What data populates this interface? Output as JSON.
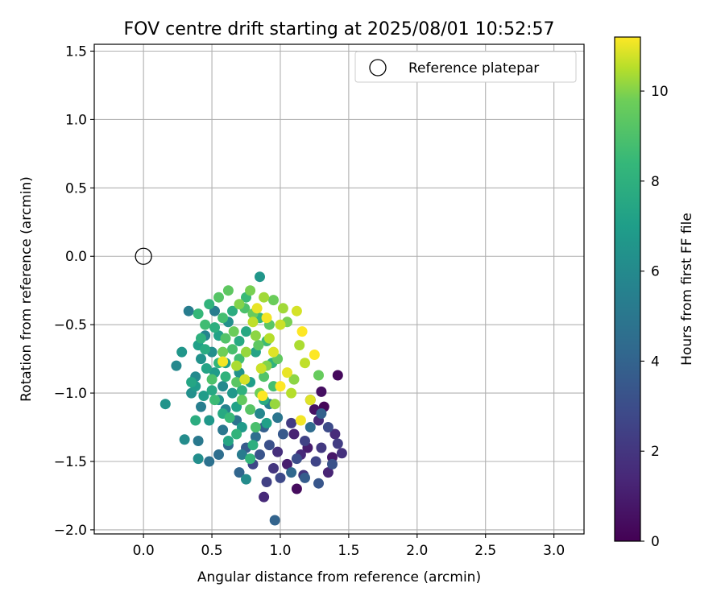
{
  "chart_data": {
    "type": "scatter",
    "title": "FOV centre drift starting at 2025/08/01 10:52:57",
    "xlabel": "Angular distance from reference (arcmin)",
    "ylabel": "Rotation from reference (arcmin)",
    "xlim": [
      -0.36,
      3.22
    ],
    "ylim": [
      -2.03,
      1.55
    ],
    "x_ticks": [
      0.0,
      0.5,
      1.0,
      1.5,
      2.0,
      2.5,
      3.0
    ],
    "x_tick_labels": [
      "0.0",
      "0.5",
      "1.0",
      "1.5",
      "2.0",
      "2.5",
      "3.0"
    ],
    "y_ticks": [
      1.5,
      1.0,
      0.5,
      0.0,
      -0.5,
      -1.0,
      -1.5,
      -2.0
    ],
    "y_tick_labels": [
      "1.5",
      "1.0",
      "0.5",
      "0.0",
      "−0.5",
      "−1.0",
      "−1.5",
      "−2.0"
    ],
    "grid": true,
    "legend": {
      "location": "top-right",
      "entries": [
        "Reference platepar"
      ]
    },
    "reference_point": {
      "x": 0.0,
      "y": 0.0,
      "label": "Reference platepar",
      "marker": "open circle"
    },
    "colorbar": {
      "label": "Hours from first FF file",
      "colormap": "viridis",
      "range": [
        0,
        11.2
      ],
      "ticks": [
        0,
        2,
        4,
        6,
        8,
        10
      ],
      "tick_labels": [
        "0",
        "2",
        "4",
        "6",
        "8",
        "10"
      ]
    },
    "series": [
      {
        "columns": [
          "x",
          "y",
          "hours"
        ],
        "points": [
          [
            1.32,
            -1.1,
            0.2
          ],
          [
            1.42,
            -0.87,
            0.3
          ],
          [
            1.12,
            -1.7,
            0.4
          ],
          [
            1.3,
            -0.99,
            0.5
          ],
          [
            1.25,
            -1.12,
            0.6
          ],
          [
            1.38,
            -1.47,
            0.8
          ],
          [
            1.2,
            -1.4,
            1.0
          ],
          [
            1.05,
            -1.52,
            1.0
          ],
          [
            1.1,
            -1.3,
            1.2
          ],
          [
            1.35,
            -1.58,
            1.3
          ],
          [
            1.28,
            -1.2,
            1.4
          ],
          [
            0.88,
            -1.76,
            1.5
          ],
          [
            1.15,
            -1.45,
            1.5
          ],
          [
            1.4,
            -1.3,
            1.6
          ],
          [
            0.98,
            -1.43,
            1.7
          ],
          [
            1.22,
            -1.05,
            1.7
          ],
          [
            1.45,
            -1.44,
            1.8
          ],
          [
            1.17,
            -1.6,
            1.9
          ],
          [
            0.95,
            -1.55,
            2.0
          ],
          [
            1.3,
            -1.4,
            2.1
          ],
          [
            1.08,
            -1.22,
            2.2
          ],
          [
            1.42,
            -1.37,
            2.3
          ],
          [
            0.9,
            -1.65,
            2.4
          ],
          [
            1.18,
            -1.35,
            2.5
          ],
          [
            1.26,
            -1.5,
            2.6
          ],
          [
            0.8,
            -1.52,
            2.7
          ],
          [
            1.0,
            -1.62,
            2.8
          ],
          [
            1.35,
            -1.25,
            2.9
          ],
          [
            1.12,
            -1.48,
            3.0
          ],
          [
            0.92,
            -1.38,
            3.1
          ],
          [
            1.38,
            -1.52,
            3.2
          ],
          [
            0.85,
            -1.45,
            3.3
          ],
          [
            1.28,
            -1.66,
            3.4
          ],
          [
            1.02,
            -1.3,
            3.5
          ],
          [
            0.75,
            -1.4,
            3.6
          ],
          [
            1.18,
            -1.62,
            3.7
          ],
          [
            0.88,
            -1.25,
            3.8
          ],
          [
            1.3,
            -1.15,
            3.9
          ],
          [
            0.96,
            -1.93,
            4.0
          ],
          [
            0.7,
            -1.58,
            4.1
          ],
          [
            1.08,
            -1.58,
            4.2
          ],
          [
            0.62,
            -1.38,
            4.3
          ],
          [
            1.22,
            -1.25,
            4.4
          ],
          [
            0.55,
            -1.45,
            4.5
          ],
          [
            0.82,
            -1.32,
            4.6
          ],
          [
            0.48,
            -1.5,
            4.7
          ],
          [
            0.68,
            -1.2,
            4.8
          ],
          [
            0.98,
            -1.18,
            4.9
          ],
          [
            0.58,
            -1.27,
            5.0
          ],
          [
            0.4,
            -1.35,
            5.1
          ],
          [
            0.72,
            -1.45,
            5.2
          ],
          [
            0.33,
            -0.4,
            5.3
          ],
          [
            0.52,
            -0.4,
            5.3
          ],
          [
            0.42,
            -1.1,
            5.4
          ],
          [
            0.92,
            -1.08,
            5.5
          ],
          [
            0.6,
            -1.12,
            5.6
          ],
          [
            0.45,
            -0.58,
            5.7
          ],
          [
            0.85,
            -1.15,
            5.8
          ],
          [
            0.24,
            -0.8,
            5.9
          ],
          [
            0.38,
            -0.88,
            6.0
          ],
          [
            0.58,
            -0.95,
            6.0
          ],
          [
            0.3,
            -1.34,
            6.1
          ],
          [
            0.75,
            -1.63,
            6.1
          ],
          [
            0.4,
            -1.48,
            6.2
          ],
          [
            0.5,
            -0.7,
            6.2
          ],
          [
            0.62,
            -0.48,
            6.3
          ],
          [
            0.35,
            -1.0,
            6.3
          ],
          [
            0.7,
            -0.85,
            6.4
          ],
          [
            0.42,
            -0.75,
            6.4
          ],
          [
            0.55,
            -1.05,
            6.5
          ],
          [
            0.16,
            -1.08,
            6.5
          ],
          [
            0.85,
            -0.15,
            6.6
          ],
          [
            0.28,
            -0.7,
            6.6
          ],
          [
            0.48,
            -1.2,
            6.7
          ],
          [
            0.65,
            -1.0,
            6.7
          ],
          [
            0.38,
            -0.95,
            6.8
          ],
          [
            0.72,
            -1.25,
            6.8
          ],
          [
            0.52,
            -0.85,
            6.9
          ],
          [
            0.44,
            -1.02,
            6.9
          ],
          [
            0.6,
            -0.78,
            7.0
          ],
          [
            0.78,
            -0.92,
            7.0
          ],
          [
            0.4,
            -0.65,
            7.1
          ],
          [
            0.9,
            -1.22,
            7.1
          ],
          [
            0.55,
            -0.58,
            7.2
          ],
          [
            0.68,
            -1.1,
            7.2
          ],
          [
            0.46,
            -0.82,
            7.3
          ],
          [
            0.82,
            -0.7,
            7.3
          ],
          [
            0.35,
            -0.92,
            7.4
          ],
          [
            0.62,
            -1.35,
            7.4
          ],
          [
            0.75,
            -0.55,
            7.5
          ],
          [
            0.5,
            -0.98,
            7.5
          ],
          [
            0.58,
            -1.15,
            7.6
          ],
          [
            0.7,
            -0.62,
            7.6
          ],
          [
            0.45,
            -0.68,
            7.7
          ],
          [
            0.88,
            -1.05,
            7.7
          ],
          [
            0.65,
            -0.4,
            7.8
          ],
          [
            0.38,
            -1.2,
            7.8
          ],
          [
            0.8,
            -1.38,
            7.9
          ],
          [
            0.52,
            -0.52,
            7.9
          ],
          [
            0.72,
            -0.98,
            8.0
          ],
          [
            0.42,
            -0.6,
            8.0
          ],
          [
            0.6,
            -0.88,
            8.1
          ],
          [
            0.94,
            -0.78,
            8.1
          ],
          [
            0.48,
            -0.35,
            8.2
          ],
          [
            0.68,
            -1.3,
            8.2
          ],
          [
            0.78,
            -1.48,
            8.3
          ],
          [
            0.55,
            -0.78,
            8.3
          ],
          [
            0.85,
            -0.45,
            8.4
          ],
          [
            0.4,
            -0.42,
            8.4
          ],
          [
            0.63,
            -1.18,
            8.5
          ],
          [
            0.75,
            -0.3,
            8.5
          ],
          [
            0.52,
            -1.05,
            8.6
          ],
          [
            0.9,
            -0.62,
            8.6
          ],
          [
            0.45,
            -0.5,
            8.7
          ],
          [
            0.7,
            -0.75,
            8.7
          ],
          [
            0.95,
            -0.95,
            8.8
          ],
          [
            0.58,
            -0.45,
            8.8
          ],
          [
            0.82,
            -1.25,
            8.9
          ],
          [
            0.65,
            -0.68,
            8.9
          ],
          [
            0.5,
            -0.9,
            9.0
          ],
          [
            0.74,
            -0.38,
            9.0
          ],
          [
            0.88,
            -0.88,
            9.1
          ],
          [
            0.6,
            -0.6,
            9.1
          ],
          [
            0.78,
            -1.12,
            9.2
          ],
          [
            0.55,
            -0.3,
            9.2
          ],
          [
            0.92,
            -0.5,
            9.3
          ],
          [
            0.68,
            -0.92,
            9.3
          ],
          [
            0.84,
            -0.65,
            9.4
          ],
          [
            0.62,
            -0.25,
            9.4
          ],
          [
            0.98,
            -0.75,
            9.5
          ],
          [
            0.72,
            -1.05,
            9.5
          ],
          [
            1.28,
            -0.87,
            9.6
          ],
          [
            0.8,
            -0.42,
            9.6
          ],
          [
            0.66,
            -0.55,
            9.7
          ],
          [
            0.95,
            -0.32,
            9.7
          ],
          [
            0.85,
            -1.0,
            9.8
          ],
          [
            0.58,
            -0.7,
            9.8
          ],
          [
            0.78,
            -0.25,
            9.9
          ],
          [
            1.05,
            -0.48,
            9.9
          ],
          [
            0.9,
            -0.8,
            10.0
          ],
          [
            0.7,
            -0.35,
            10.0
          ],
          [
            1.1,
            -0.9,
            10.1
          ],
          [
            0.82,
            -0.58,
            10.1
          ],
          [
            0.96,
            -1.08,
            10.2
          ],
          [
            0.75,
            -0.7,
            10.2
          ],
          [
            1.02,
            -0.38,
            10.3
          ],
          [
            0.88,
            -0.3,
            10.3
          ],
          [
            1.14,
            -0.65,
            10.4
          ],
          [
            0.68,
            -0.8,
            10.4
          ],
          [
            0.92,
            -0.6,
            10.5
          ],
          [
            1.08,
            -1.0,
            10.5
          ],
          [
            0.8,
            -0.48,
            10.6
          ],
          [
            1.18,
            -0.78,
            10.6
          ],
          [
            0.86,
            -0.82,
            10.7
          ],
          [
            1.0,
            -0.5,
            10.7
          ],
          [
            0.74,
            -0.9,
            10.8
          ],
          [
            1.12,
            -0.4,
            10.8
          ],
          [
            0.95,
            -0.7,
            10.9
          ],
          [
            1.22,
            -1.05,
            10.9
          ],
          [
            0.83,
            -0.38,
            11.0
          ],
          [
            1.05,
            -0.85,
            11.0
          ],
          [
            0.9,
            -0.45,
            11.1
          ],
          [
            1.15,
            -1.2,
            11.1
          ],
          [
            0.58,
            -0.77,
            11.1
          ],
          [
            1.25,
            -0.72,
            11.2
          ],
          [
            1.0,
            -0.95,
            11.2
          ],
          [
            0.87,
            -1.02,
            11.2
          ],
          [
            1.16,
            -0.55,
            11.2
          ]
        ]
      }
    ]
  }
}
